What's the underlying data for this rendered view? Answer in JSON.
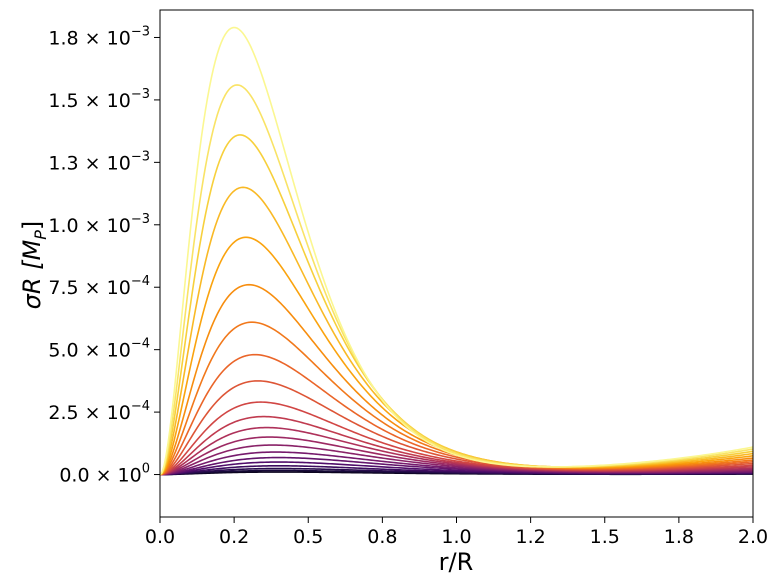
{
  "chart_data": {
    "type": "line",
    "xlabel": "r/R",
    "ylabel_base": "σR [M",
    "ylabel_sub": "P",
    "ylabel_close": "]",
    "xlim": [
      0,
      2.0
    ],
    "ylim": [
      -0.00017,
      0.00186
    ],
    "grid": false,
    "legend": "none",
    "x_ticks": [
      {
        "value": 0.0,
        "label": "0.0"
      },
      {
        "value": 0.25,
        "label": "0.2"
      },
      {
        "value": 0.5,
        "label": "0.5"
      },
      {
        "value": 0.75,
        "label": "0.8"
      },
      {
        "value": 1.0,
        "label": "1.0"
      },
      {
        "value": 1.25,
        "label": "1.2"
      },
      {
        "value": 1.5,
        "label": "1.5"
      },
      {
        "value": 1.75,
        "label": "1.8"
      },
      {
        "value": 2.0,
        "label": "2.0"
      }
    ],
    "y_ticks": [
      {
        "value": 0.0,
        "mantissa": "0.0",
        "exponent": "0"
      },
      {
        "value": 0.00025,
        "mantissa": "2.5",
        "exponent": "−4"
      },
      {
        "value": 0.0005,
        "mantissa": "5.0",
        "exponent": "−4"
      },
      {
        "value": 0.00075,
        "mantissa": "7.5",
        "exponent": "−4"
      },
      {
        "value": 0.001,
        "mantissa": "1.0",
        "exponent": "−3"
      },
      {
        "value": 0.00125,
        "mantissa": "1.3",
        "exponent": "−3"
      },
      {
        "value": 0.0015,
        "mantissa": "1.5",
        "exponent": "−3"
      },
      {
        "value": 0.00175,
        "mantissa": "1.8",
        "exponent": "−3"
      }
    ],
    "colormap": [
      "#000004",
      "#1b0c41",
      "#4a0c6b",
      "#781c6d",
      "#a52c60",
      "#cf4446",
      "#ed6925",
      "#fb9b06",
      "#f7d13d",
      "#fcffa4"
    ],
    "series": [
      {
        "peak_x": 0.4,
        "peak_y": 1e-05,
        "values_at_2": 1.8e-06
      },
      {
        "peak_x": 0.4,
        "peak_y": 1.6e-05,
        "values_at_2": 2.5e-06
      },
      {
        "peak_x": 0.4,
        "peak_y": 2.4e-05,
        "values_at_2": 3.5e-06
      },
      {
        "peak_x": 0.4,
        "peak_y": 3.5e-05,
        "values_at_2": 5e-06
      },
      {
        "peak_x": 0.4,
        "peak_y": 5e-05,
        "values_at_2": 7e-06
      },
      {
        "peak_x": 0.4,
        "peak_y": 6.8e-05,
        "values_at_2": 9.5e-06
      },
      {
        "peak_x": 0.39,
        "peak_y": 9e-05,
        "values_at_2": 1.2e-05
      },
      {
        "peak_x": 0.38,
        "peak_y": 0.000118,
        "values_at_2": 1.6e-05
      },
      {
        "peak_x": 0.37,
        "peak_y": 0.00015,
        "values_at_2": 2e-05
      },
      {
        "peak_x": 0.36,
        "peak_y": 0.000188,
        "values_at_2": 2.5e-05
      },
      {
        "peak_x": 0.35,
        "peak_y": 0.000232,
        "values_at_2": 3.1e-05
      },
      {
        "peak_x": 0.34,
        "peak_y": 0.00029,
        "values_at_2": 3.7e-05
      },
      {
        "peak_x": 0.33,
        "peak_y": 0.000375,
        "values_at_2": 4.4e-05
      },
      {
        "peak_x": 0.32,
        "peak_y": 0.00048,
        "values_at_2": 5.1e-05
      },
      {
        "peak_x": 0.31,
        "peak_y": 0.00061,
        "values_at_2": 5.8e-05
      },
      {
        "peak_x": 0.3,
        "peak_y": 0.00076,
        "values_at_2": 6.6e-05
      },
      {
        "peak_x": 0.29,
        "peak_y": 0.00095,
        "values_at_2": 7.5e-05
      },
      {
        "peak_x": 0.28,
        "peak_y": 0.00115,
        "values_at_2": 8.4e-05
      },
      {
        "peak_x": 0.27,
        "peak_y": 0.00136,
        "values_at_2": 9.3e-05
      },
      {
        "peak_x": 0.26,
        "peak_y": 0.00156,
        "values_at_2": 0.000102
      },
      {
        "peak_x": 0.25,
        "peak_y": 0.00179,
        "values_at_2": 0.00011
      }
    ]
  }
}
